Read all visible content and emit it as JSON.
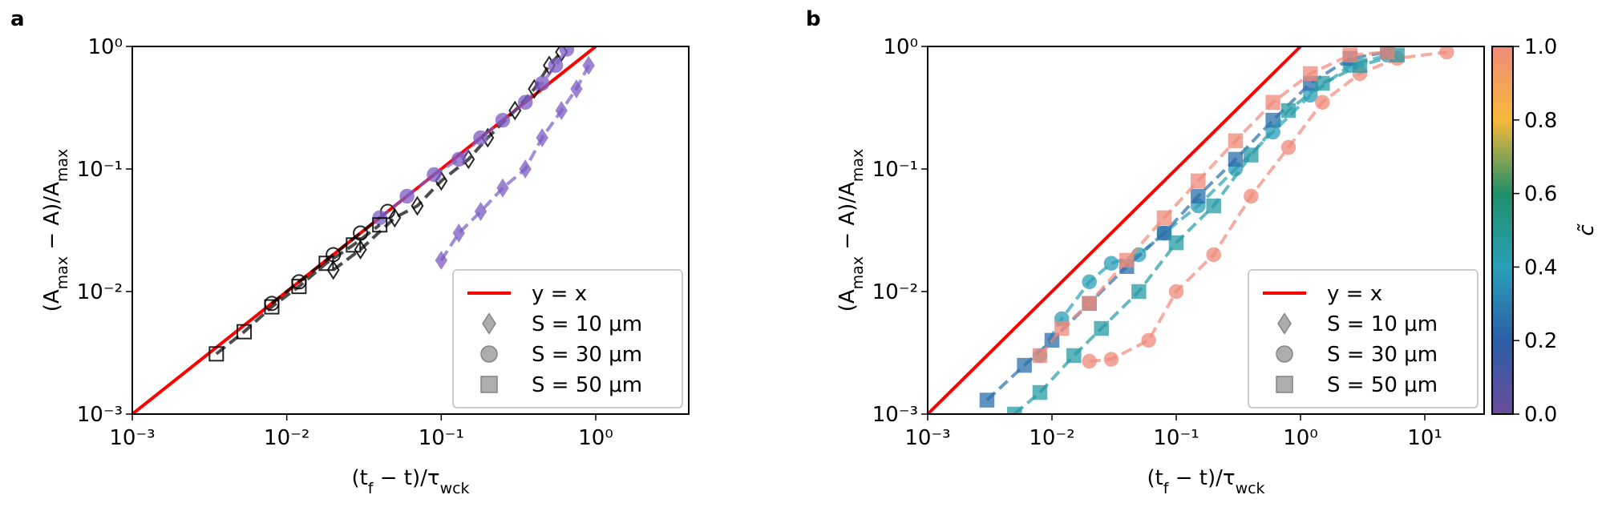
{
  "chart_data": [
    {
      "type": "scatter",
      "panel_label": "a",
      "log_x": true,
      "log_y": true,
      "xlim": [
        0.001,
        4
      ],
      "ylim": [
        0.001,
        1
      ],
      "xticks": [
        {
          "value": 0.001,
          "label": "10⁻³"
        },
        {
          "value": 0.01,
          "label": "10⁻²"
        },
        {
          "value": 0.1,
          "label": "10⁻¹"
        },
        {
          "value": 1,
          "label": "10⁰"
        }
      ],
      "yticks": [
        {
          "value": 0.001,
          "label": "10⁻³"
        },
        {
          "value": 0.01,
          "label": "10⁻²"
        },
        {
          "value": 0.1,
          "label": "10⁻¹"
        },
        {
          "value": 1,
          "label": "10⁰"
        }
      ],
      "xlabel": [
        {
          "text": "(t"
        },
        {
          "text": "f",
          "sub": true
        },
        {
          "text": " − t)/τ"
        },
        {
          "text": "wck",
          "sub": true
        }
      ],
      "ylabel": [
        {
          "text": "(A"
        },
        {
          "text": "max",
          "sub": true
        },
        {
          "text": " − A)/A"
        },
        {
          "text": "max",
          "sub": true
        }
      ],
      "legend": "lower right",
      "legend_color": "#999999",
      "series": [
        {
          "name": "y = x",
          "kind": "line",
          "color": "#ff0000",
          "x": [
            0.001,
            1
          ],
          "y": [
            0.001,
            1
          ]
        },
        {
          "name": "S = 10 μm",
          "marker": "diamond",
          "groups": [
            {
              "color": "#000000",
              "filled": false,
              "x": [
                0.02,
                0.03,
                0.05,
                0.07,
                0.1,
                0.15,
                0.2,
                0.3,
                0.4,
                0.5,
                0.6
              ],
              "y": [
                0.015,
                0.022,
                0.04,
                0.05,
                0.08,
                0.12,
                0.18,
                0.3,
                0.45,
                0.7,
                0.9
              ]
            },
            {
              "color": "#7b5cc4",
              "filled": true,
              "x": [
                0.1,
                0.13,
                0.18,
                0.25,
                0.35,
                0.45,
                0.6,
                0.75,
                0.9
              ],
              "y": [
                0.018,
                0.03,
                0.045,
                0.07,
                0.1,
                0.18,
                0.3,
                0.45,
                0.7
              ]
            }
          ]
        },
        {
          "name": "S = 30 μm",
          "marker": "circle",
          "groups": [
            {
              "color": "#000000",
              "filled": false,
              "x": [
                0.008,
                0.012,
                0.02,
                0.03,
                0.045
              ],
              "y": [
                0.008,
                0.012,
                0.02,
                0.03,
                0.045
              ]
            },
            {
              "color": "#7b5cc4",
              "filled": true,
              "x": [
                0.04,
                0.06,
                0.09,
                0.13,
                0.18,
                0.25,
                0.35,
                0.45,
                0.55,
                0.65
              ],
              "y": [
                0.04,
                0.06,
                0.09,
                0.12,
                0.18,
                0.25,
                0.35,
                0.5,
                0.7,
                0.95
              ]
            }
          ]
        },
        {
          "name": "S = 50 μm",
          "marker": "square",
          "groups": [
            {
              "color": "#000000",
              "filled": false,
              "x": [
                0.0035,
                0.0053,
                0.008,
                0.012,
                0.018,
                0.027,
                0.04
              ],
              "y": [
                0.0031,
                0.0047,
                0.0075,
                0.011,
                0.017,
                0.024,
                0.035
              ]
            }
          ]
        }
      ]
    },
    {
      "type": "scatter",
      "panel_label": "b",
      "log_x": true,
      "log_y": true,
      "xlim": [
        0.001,
        30
      ],
      "ylim": [
        0.001,
        1
      ],
      "xticks": [
        {
          "value": 0.001,
          "label": "10⁻³"
        },
        {
          "value": 0.01,
          "label": "10⁻²"
        },
        {
          "value": 0.1,
          "label": "10⁻¹"
        },
        {
          "value": 1,
          "label": "10⁰"
        },
        {
          "value": 10,
          "label": "10¹"
        }
      ],
      "yticks": [
        {
          "value": 0.001,
          "label": "10⁻³"
        },
        {
          "value": 0.01,
          "label": "10⁻²"
        },
        {
          "value": 0.1,
          "label": "10⁻¹"
        },
        {
          "value": 1,
          "label": "10⁰"
        }
      ],
      "xlabel": [
        {
          "text": "(t"
        },
        {
          "text": "f",
          "sub": true
        },
        {
          "text": " − t)/τ"
        },
        {
          "text": "wck",
          "sub": true
        }
      ],
      "ylabel": [
        {
          "text": "(A"
        },
        {
          "text": "max",
          "sub": true
        },
        {
          "text": " − A)/A"
        },
        {
          "text": "max",
          "sub": true
        }
      ],
      "legend": "lower right",
      "legend_color": "#999999",
      "colorbar": {
        "label": "c̃",
        "clim": [
          0,
          1
        ],
        "colormap": [
          "#6a4c9c",
          "#2b5fa6",
          "#2a9fb8",
          "#1f8f6a",
          "#f6b93b",
          "#f08a7a"
        ],
        "ticks": [
          {
            "value": 0,
            "label": "0.0"
          },
          {
            "value": 0.2,
            "label": "0.2"
          },
          {
            "value": 0.4,
            "label": "0.4"
          },
          {
            "value": 0.6,
            "label": "0.6"
          },
          {
            "value": 0.8,
            "label": "0.8"
          },
          {
            "value": 1,
            "label": "1.0"
          }
        ]
      },
      "series": [
        {
          "name": "y = x",
          "kind": "line",
          "color": "#ff0000",
          "x": [
            0.001,
            1
          ],
          "y": [
            0.001,
            1
          ]
        },
        {
          "name": "S = 10 μm",
          "marker": "diamond",
          "groups": []
        },
        {
          "name": "S = 30 μm",
          "marker": "circle",
          "groups": [
            {
              "c": 0.4,
              "x": [
                0.008,
                0.012,
                0.02,
                0.03,
                0.05,
                0.08,
                0.15,
                0.3,
                0.6,
                1.2,
                2.5,
                5
              ],
              "y": [
                0.003,
                0.006,
                0.012,
                0.017,
                0.02,
                0.03,
                0.05,
                0.1,
                0.2,
                0.4,
                0.7,
                0.85
              ]
            },
            {
              "c": 1,
              "x": [
                0.02,
                0.03,
                0.06,
                0.1,
                0.2,
                0.4,
                0.8,
                1.5,
                3,
                6,
                15
              ],
              "y": [
                0.0027,
                0.0028,
                0.004,
                0.01,
                0.02,
                0.06,
                0.15,
                0.35,
                0.6,
                0.8,
                0.9
              ]
            }
          ]
        },
        {
          "name": "S = 50 μm",
          "marker": "square",
          "groups": [
            {
              "c": 0.25,
              "x": [
                0.003,
                0.006,
                0.01,
                0.02,
                0.04,
                0.08,
                0.15,
                0.3,
                0.6,
                1.2,
                2.5,
                5
              ],
              "y": [
                0.0013,
                0.0025,
                0.004,
                0.008,
                0.016,
                0.03,
                0.06,
                0.12,
                0.25,
                0.5,
                0.8,
                0.9
              ]
            },
            {
              "c": 0.45,
              "x": [
                0.005,
                0.008,
                0.015,
                0.025,
                0.05,
                0.1,
                0.2,
                0.4,
                0.8,
                1.5,
                3,
                6
              ],
              "y": [
                0.001,
                0.0015,
                0.003,
                0.005,
                0.01,
                0.025,
                0.05,
                0.13,
                0.3,
                0.5,
                0.7,
                0.85
              ]
            },
            {
              "c": 1,
              "x": [
                0.008,
                0.012,
                0.02,
                0.04,
                0.08,
                0.15,
                0.3,
                0.6,
                1.2,
                2.5,
                5
              ],
              "y": [
                0.003,
                0.005,
                0.008,
                0.018,
                0.04,
                0.08,
                0.17,
                0.35,
                0.6,
                0.85,
                0.9
              ]
            }
          ]
        }
      ]
    }
  ]
}
